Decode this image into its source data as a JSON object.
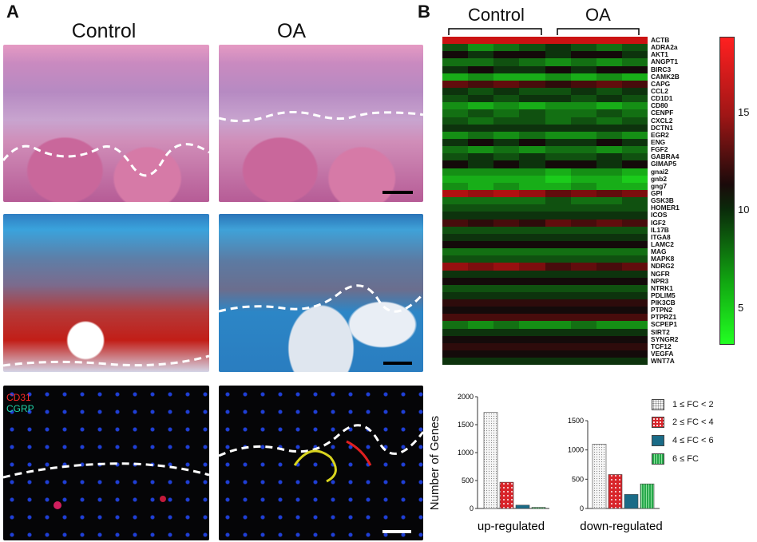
{
  "panel_a": {
    "letter": "A",
    "col_control": "Control",
    "col_oa": "OA",
    "if_label_cd31": "CD31",
    "if_label_cgrp": "CGRP"
  },
  "panel_b": {
    "letter": "B",
    "group_control": "Control",
    "group_oa": "OA",
    "colorbar_ticks": [
      "15",
      "10",
      "5"
    ],
    "colorbar_range": [
      3,
      19
    ],
    "genes": [
      "ACTB",
      "ADRA2a",
      "AKT1",
      "ANGPT1",
      "BIRC3",
      "CAMK2B",
      "CAPG",
      "CCL2",
      "CD1D1",
      "CD80",
      "CENPF",
      "CXCL2",
      "DCTN1",
      "EGR2",
      "ENG",
      "FGF2",
      "GABRA4",
      "GIMAP5",
      "gnai2",
      "gnb2",
      "gng7",
      "GPI",
      "GSK3B",
      "HOMER1",
      "ICOS",
      "IGF2",
      "IL17B",
      "ITGA8",
      "LAMC2",
      "MAG",
      "MAPK8",
      "NDRG2",
      "NGFR",
      "NPR3",
      "NTRK1",
      "PDLIM5",
      "PIK3CB",
      "PTPN2",
      "PTPRZ1",
      "SCPEP1",
      "SIRT2",
      "SYNGR2",
      "TCF12",
      "VEGFA",
      "WNT7A"
    ],
    "heatmap_values": [
      [
        17,
        17,
        17,
        17,
        17,
        17,
        17,
        17
      ],
      [
        8,
        6,
        7,
        8,
        9,
        8,
        7,
        8
      ],
      [
        10,
        9,
        10,
        10,
        9,
        10,
        10,
        9
      ],
      [
        7,
        7,
        8,
        7,
        6,
        7,
        6,
        7
      ],
      [
        9,
        10,
        9,
        9,
        10,
        9,
        10,
        10
      ],
      [
        5,
        6,
        5,
        5,
        6,
        5,
        6,
        5
      ],
      [
        13,
        12,
        13,
        12,
        11,
        12,
        13,
        12
      ],
      [
        9,
        8,
        9,
        8,
        8,
        9,
        8,
        9
      ],
      [
        8,
        9,
        8,
        9,
        9,
        8,
        9,
        8
      ],
      [
        6,
        5,
        6,
        5,
        6,
        6,
        5,
        6
      ],
      [
        7,
        8,
        7,
        8,
        7,
        7,
        8,
        7
      ],
      [
        8,
        7,
        8,
        8,
        7,
        8,
        7,
        8
      ],
      [
        9,
        9,
        9,
        9,
        9,
        9,
        9,
        9
      ],
      [
        6,
        7,
        6,
        7,
        6,
        6,
        7,
        6
      ],
      [
        9,
        10,
        9,
        10,
        9,
        9,
        10,
        9
      ],
      [
        7,
        6,
        7,
        6,
        7,
        7,
        6,
        7
      ],
      [
        8,
        9,
        8,
        9,
        8,
        8,
        9,
        8
      ],
      [
        10,
        9,
        10,
        9,
        10,
        10,
        9,
        10
      ],
      [
        6,
        6,
        6,
        6,
        5,
        6,
        6,
        5
      ],
      [
        5,
        5,
        5,
        5,
        4,
        5,
        5,
        4
      ],
      [
        6,
        5,
        6,
        5,
        5,
        6,
        5,
        5
      ],
      [
        16,
        15,
        16,
        15,
        13,
        14,
        13,
        14
      ],
      [
        7,
        7,
        7,
        7,
        8,
        7,
        7,
        8
      ],
      [
        8,
        8,
        8,
        8,
        8,
        8,
        8,
        8
      ],
      [
        9,
        9,
        9,
        9,
        9,
        9,
        9,
        9
      ],
      [
        12,
        11,
        12,
        11,
        13,
        12,
        13,
        12
      ],
      [
        8,
        8,
        8,
        8,
        8,
        8,
        8,
        8
      ],
      [
        9,
        9,
        9,
        9,
        9,
        9,
        9,
        9
      ],
      [
        10,
        10,
        10,
        10,
        10,
        10,
        10,
        10
      ],
      [
        7,
        7,
        7,
        7,
        7,
        7,
        7,
        7
      ],
      [
        8,
        8,
        8,
        8,
        8,
        8,
        8,
        8
      ],
      [
        15,
        14,
        15,
        14,
        12,
        13,
        12,
        13
      ],
      [
        9,
        9,
        9,
        9,
        9,
        9,
        9,
        9
      ],
      [
        10,
        10,
        10,
        10,
        10,
        10,
        10,
        10
      ],
      [
        8,
        8,
        8,
        8,
        8,
        8,
        8,
        8
      ],
      [
        9,
        9,
        9,
        9,
        9,
        9,
        9,
        9
      ],
      [
        11,
        11,
        11,
        11,
        11,
        11,
        11,
        11
      ],
      [
        10,
        10,
        10,
        10,
        10,
        10,
        10,
        10
      ],
      [
        12,
        12,
        12,
        12,
        12,
        12,
        12,
        12
      ],
      [
        7,
        6,
        7,
        6,
        6,
        7,
        6,
        6
      ],
      [
        9,
        9,
        9,
        9,
        9,
        9,
        9,
        9
      ],
      [
        10,
        10,
        10,
        10,
        10,
        10,
        10,
        10
      ],
      [
        11,
        11,
        11,
        11,
        11,
        11,
        11,
        11
      ],
      [
        10,
        10,
        10,
        10,
        10,
        10,
        10,
        10
      ],
      [
        9,
        9,
        9,
        9,
        9,
        9,
        9,
        9
      ]
    ]
  },
  "chart_data": [
    {
      "type": "bar",
      "ylabel": "Number of Genes",
      "xlabel": "up-regulated",
      "ylim": [
        0,
        2000
      ],
      "yticks": [
        "0",
        "500",
        "1000",
        "1500",
        "2000"
      ],
      "categories": [
        "1 ≤ FC < 2",
        "2 ≤ FC < 4",
        "4 ≤ FC < 6",
        "6 ≤ FC"
      ],
      "values": [
        1720,
        470,
        60,
        20
      ]
    },
    {
      "type": "bar",
      "xlabel": "down-regulated",
      "ylim": [
        0,
        1500
      ],
      "yticks": [
        "0",
        "500",
        "1000",
        "1500"
      ],
      "categories": [
        "1 ≤ FC < 2",
        "2 ≤ FC < 4",
        "4 ≤ FC < 6",
        "6 ≤ FC"
      ],
      "values": [
        1100,
        580,
        240,
        420
      ]
    }
  ],
  "legend": [
    {
      "label": "1 ≤ FC < 2",
      "color": "#f0f0f0"
    },
    {
      "label": "2 ≤ FC < 4",
      "color": "#d8242a"
    },
    {
      "label": "4 ≤ FC < 6",
      "color": "#1a6b87"
    },
    {
      "label": "6 ≤ FC",
      "color": "#26a84a"
    }
  ]
}
